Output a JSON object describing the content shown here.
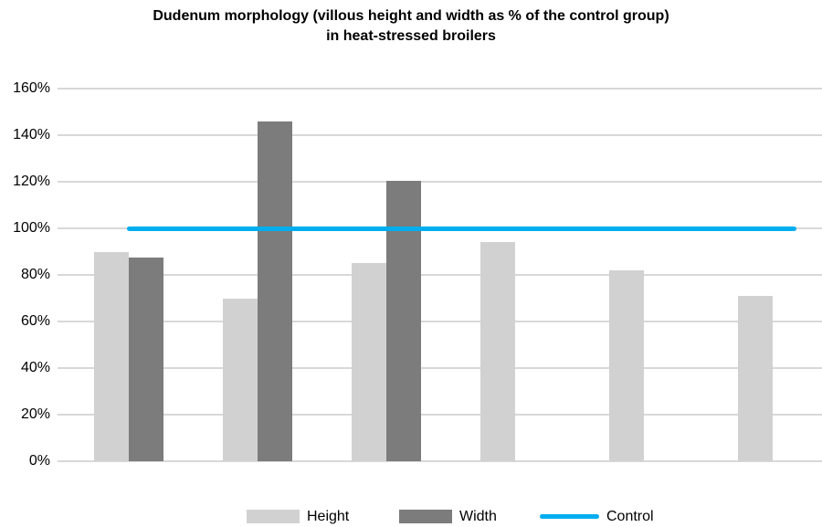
{
  "title": {
    "line1": "Dudenum morphology (villous height and width as % of the control group)",
    "line2": "in heat-stressed broilers"
  },
  "chart_data": {
    "type": "bar",
    "title": "Dudenum morphology (villous height and width as % of the control group) in heat-stressed broilers",
    "categories": [
      "",
      "",
      "",
      "",
      "",
      ""
    ],
    "series": [
      {
        "name": "Height",
        "color": "#d1d1d1",
        "values": [
          90,
          70,
          85,
          94,
          82,
          71
        ]
      },
      {
        "name": "Width",
        "color": "#7c7c7c",
        "values": [
          87.5,
          146,
          120.5,
          null,
          null,
          null
        ]
      }
    ],
    "control_line": {
      "name": "Control",
      "value": 100,
      "color": "#00aeef"
    },
    "ylabel": "",
    "xlabel": "",
    "ylim": [
      0,
      160
    ],
    "ytick_step": 20,
    "ytick_labels": [
      "0%",
      "20%",
      "40%",
      "60%",
      "80%",
      "100%",
      "120%",
      "140%",
      "160%"
    ],
    "grid": true,
    "gridline_color": "#d8d8d8",
    "legend_position": "bottom"
  }
}
